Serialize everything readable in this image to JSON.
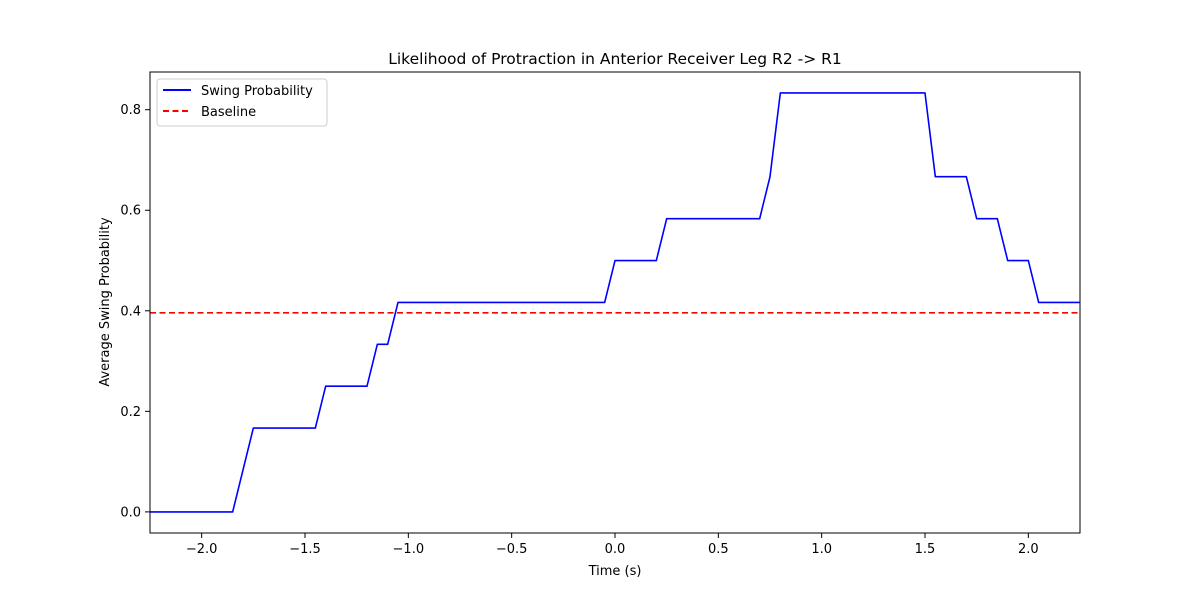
{
  "chart_data": {
    "type": "line",
    "title": "Likelihood of Protraction in Anterior Receiver Leg R2 -> R1",
    "xlabel": "Time (s)",
    "ylabel": "Average Swing Probability",
    "xlim": [
      -2.25,
      2.25
    ],
    "ylim": [
      -0.042,
      0.875
    ],
    "xticks": [
      -2.0,
      -1.5,
      -1.0,
      -0.5,
      0.0,
      0.5,
      1.0,
      1.5,
      2.0
    ],
    "xtick_labels": [
      "−2.0",
      "−1.5",
      "−1.0",
      "−0.5",
      "0.0",
      "0.5",
      "1.0",
      "1.5",
      "2.0"
    ],
    "yticks": [
      0.0,
      0.2,
      0.4,
      0.6,
      0.8
    ],
    "ytick_labels": [
      "0.0",
      "0.2",
      "0.4",
      "0.6",
      "0.8"
    ],
    "grid": false,
    "legend_position": "top-left",
    "series": [
      {
        "name": "Swing Probability",
        "color": "#0000ff",
        "style": "solid",
        "x": [
          -2.25,
          -1.85,
          -1.75,
          -1.45,
          -1.4,
          -1.2,
          -1.15,
          -1.1,
          -1.05,
          -0.05,
          0.0,
          0.2,
          0.25,
          0.7,
          0.75,
          0.8,
          1.5,
          1.55,
          1.7,
          1.75,
          1.85,
          1.9,
          2.0,
          2.05,
          2.25
        ],
        "y": [
          0.0,
          0.0,
          0.1667,
          0.1667,
          0.25,
          0.25,
          0.3333,
          0.3333,
          0.4167,
          0.4167,
          0.5,
          0.5,
          0.5833,
          0.5833,
          0.6667,
          0.8333,
          0.8333,
          0.6667,
          0.6667,
          0.5833,
          0.5833,
          0.5,
          0.5,
          0.4167,
          0.4167
        ]
      },
      {
        "name": "Baseline",
        "color": "#ff0000",
        "style": "dashed",
        "x": [
          -2.25,
          2.25
        ],
        "y": [
          0.396,
          0.396
        ]
      }
    ]
  }
}
